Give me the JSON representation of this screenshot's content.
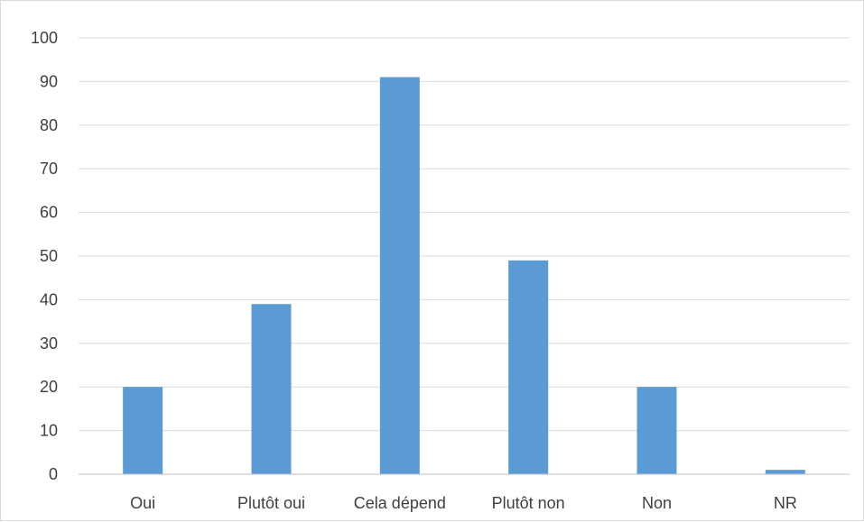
{
  "chart_data": {
    "type": "bar",
    "categories": [
      "Oui",
      "Plutôt oui",
      "Cela dépend",
      "Plutôt non",
      "Non",
      "NR"
    ],
    "values": [
      20,
      39,
      91,
      49,
      20,
      1
    ],
    "ylim": [
      0,
      100
    ],
    "yticks": [
      0,
      10,
      20,
      30,
      40,
      50,
      60,
      70,
      80,
      90,
      100
    ],
    "grid": true,
    "legend": "none",
    "bar_color": "#5b9bd5"
  }
}
